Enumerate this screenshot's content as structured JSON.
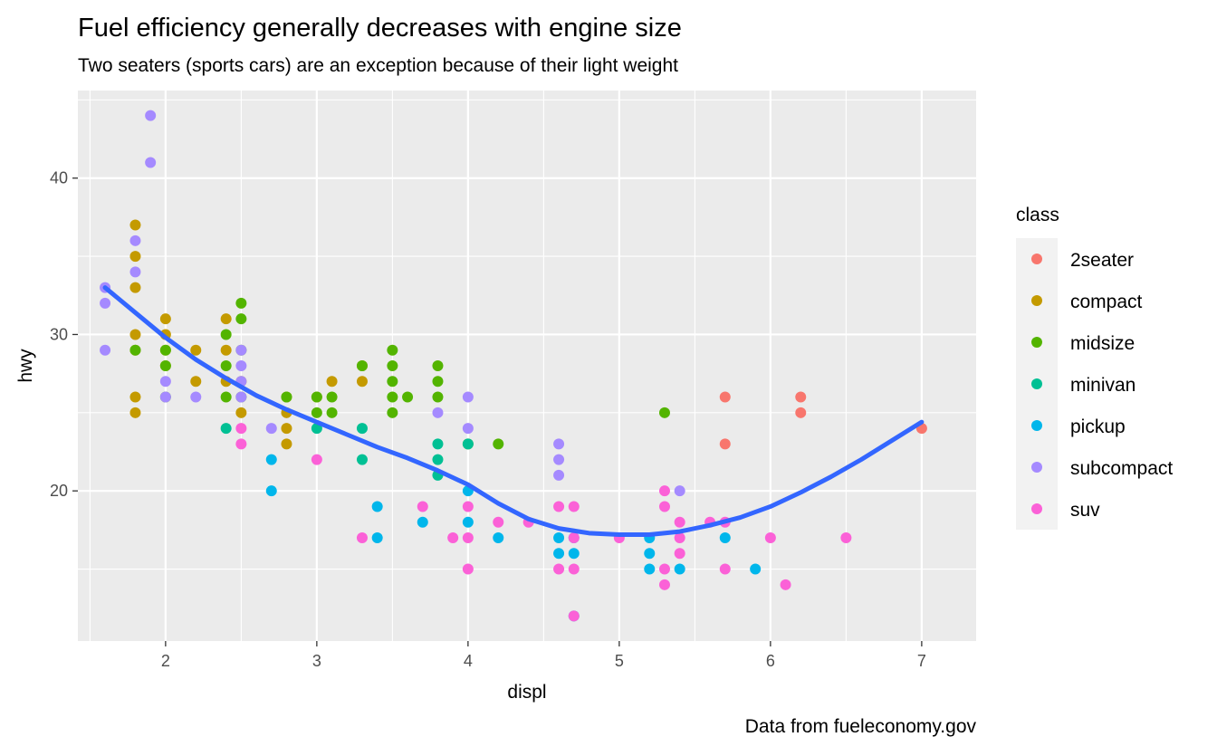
{
  "chart_data": {
    "type": "scatter",
    "title": "Fuel efficiency generally decreases with engine size",
    "subtitle": "Two seaters (sports cars) are an exception because of their light weight",
    "caption": "Data from fueleconomy.gov",
    "xlabel": "displ",
    "ylabel": "hwy",
    "xlim": [
      1.42,
      7.36
    ],
    "ylim": [
      10.4,
      45.6
    ],
    "x_ticks": [
      2,
      3,
      4,
      5,
      6,
      7
    ],
    "y_ticks": [
      20,
      30,
      40
    ],
    "x_tick_labels": [
      "2",
      "3",
      "4",
      "5",
      "6",
      "7"
    ],
    "y_tick_labels": [
      "20",
      "30",
      "40"
    ],
    "grid": true,
    "legend": {
      "title": "class",
      "placement": "right",
      "entries": [
        "2seater",
        "compact",
        "midsize",
        "minivan",
        "pickup",
        "subcompact",
        "suv"
      ]
    },
    "colors": {
      "2seater": "#F8766D",
      "compact": "#C49A00",
      "midsize": "#53B400",
      "minivan": "#00C094",
      "pickup": "#00B6EB",
      "subcompact": "#A58AFF",
      "suv": "#FB61D7",
      "smooth": "#3366FF",
      "panel": "#EBEBEB",
      "grid": "#FFFFFF"
    },
    "series": [
      {
        "name": "2seater",
        "points": [
          [
            5.7,
            26
          ],
          [
            5.7,
            23
          ],
          [
            6.2,
            26
          ],
          [
            6.2,
            25
          ],
          [
            7.0,
            24
          ]
        ]
      },
      {
        "name": "compact",
        "points": [
          [
            1.8,
            37
          ],
          [
            1.8,
            35
          ],
          [
            1.8,
            33
          ],
          [
            1.8,
            30
          ],
          [
            1.8,
            29
          ],
          [
            1.8,
            26
          ],
          [
            1.8,
            25
          ],
          [
            2.0,
            31
          ],
          [
            2.0,
            30
          ],
          [
            2.0,
            29
          ],
          [
            2.0,
            28
          ],
          [
            2.2,
            29
          ],
          [
            2.2,
            27
          ],
          [
            2.4,
            31
          ],
          [
            2.4,
            29
          ],
          [
            2.4,
            27
          ],
          [
            2.5,
            27
          ],
          [
            2.5,
            25
          ],
          [
            2.8,
            26
          ],
          [
            2.8,
            25
          ],
          [
            2.8,
            24
          ],
          [
            2.8,
            23
          ],
          [
            3.0,
            26
          ],
          [
            3.1,
            27
          ],
          [
            3.3,
            27
          ],
          [
            3.3,
            28
          ]
        ]
      },
      {
        "name": "midsize",
        "points": [
          [
            1.8,
            29
          ],
          [
            2.0,
            29
          ],
          [
            2.0,
            28
          ],
          [
            2.0,
            26
          ],
          [
            2.4,
            30
          ],
          [
            2.4,
            28
          ],
          [
            2.4,
            26
          ],
          [
            2.5,
            32
          ],
          [
            2.5,
            31
          ],
          [
            2.5,
            29
          ],
          [
            2.5,
            26
          ],
          [
            2.8,
            26
          ],
          [
            3.0,
            25
          ],
          [
            3.0,
            26
          ],
          [
            3.1,
            26
          ],
          [
            3.1,
            25
          ],
          [
            3.3,
            28
          ],
          [
            3.5,
            29
          ],
          [
            3.5,
            28
          ],
          [
            3.5,
            27
          ],
          [
            3.5,
            26
          ],
          [
            3.5,
            25
          ],
          [
            3.6,
            26
          ],
          [
            3.8,
            28
          ],
          [
            3.8,
            27
          ],
          [
            3.8,
            26
          ],
          [
            4.0,
            23
          ],
          [
            4.2,
            23
          ],
          [
            5.3,
            25
          ]
        ]
      },
      {
        "name": "minivan",
        "points": [
          [
            2.4,
            24
          ],
          [
            3.0,
            24
          ],
          [
            3.3,
            24
          ],
          [
            3.3,
            22
          ],
          [
            3.8,
            23
          ],
          [
            3.8,
            22
          ],
          [
            3.8,
            21
          ],
          [
            4.0,
            23
          ]
        ]
      },
      {
        "name": "pickup",
        "points": [
          [
            2.7,
            22
          ],
          [
            2.7,
            20
          ],
          [
            3.4,
            19
          ],
          [
            3.4,
            17
          ],
          [
            3.7,
            18
          ],
          [
            4.0,
            20
          ],
          [
            4.0,
            18
          ],
          [
            4.2,
            17
          ],
          [
            4.6,
            17
          ],
          [
            4.6,
            16
          ],
          [
            4.7,
            17
          ],
          [
            4.7,
            16
          ],
          [
            4.7,
            12
          ],
          [
            5.2,
            17
          ],
          [
            5.2,
            16
          ],
          [
            5.2,
            15
          ],
          [
            5.4,
            15
          ],
          [
            5.7,
            17
          ],
          [
            5.9,
            15
          ]
        ]
      },
      {
        "name": "subcompact",
        "points": [
          [
            1.6,
            33
          ],
          [
            1.6,
            32
          ],
          [
            1.6,
            29
          ],
          [
            1.8,
            36
          ],
          [
            1.8,
            34
          ],
          [
            1.9,
            44
          ],
          [
            1.9,
            41
          ],
          [
            2.0,
            27
          ],
          [
            2.0,
            26
          ],
          [
            2.2,
            26
          ],
          [
            2.5,
            29
          ],
          [
            2.5,
            28
          ],
          [
            2.5,
            27
          ],
          [
            2.5,
            26
          ],
          [
            2.7,
            24
          ],
          [
            3.8,
            25
          ],
          [
            4.0,
            26
          ],
          [
            4.0,
            24
          ],
          [
            4.6,
            23
          ],
          [
            4.6,
            22
          ],
          [
            4.6,
            21
          ],
          [
            5.4,
            20
          ]
        ]
      },
      {
        "name": "suv",
        "points": [
          [
            2.5,
            24
          ],
          [
            2.5,
            23
          ],
          [
            3.0,
            22
          ],
          [
            3.3,
            17
          ],
          [
            3.7,
            19
          ],
          [
            3.9,
            17
          ],
          [
            4.0,
            19
          ],
          [
            4.0,
            17
          ],
          [
            4.0,
            15
          ],
          [
            4.2,
            18
          ],
          [
            4.4,
            18
          ],
          [
            4.6,
            19
          ],
          [
            4.6,
            15
          ],
          [
            4.7,
            19
          ],
          [
            4.7,
            17
          ],
          [
            4.7,
            15
          ],
          [
            4.7,
            12
          ],
          [
            5.0,
            17
          ],
          [
            5.3,
            20
          ],
          [
            5.3,
            19
          ],
          [
            5.3,
            15
          ],
          [
            5.3,
            14
          ],
          [
            5.4,
            18
          ],
          [
            5.4,
            17
          ],
          [
            5.4,
            16
          ],
          [
            5.6,
            18
          ],
          [
            5.7,
            18
          ],
          [
            5.7,
            15
          ],
          [
            6.0,
            17
          ],
          [
            6.1,
            14
          ],
          [
            6.5,
            17
          ]
        ]
      }
    ],
    "smooth_curve": {
      "x": [
        1.6,
        1.8,
        2.0,
        2.2,
        2.4,
        2.6,
        2.8,
        3.0,
        3.2,
        3.4,
        3.6,
        3.8,
        4.0,
        4.2,
        4.4,
        4.6,
        4.8,
        5.0,
        5.2,
        5.4,
        5.6,
        5.8,
        6.0,
        6.2,
        6.4,
        6.6,
        6.8,
        7.0
      ],
      "y": [
        33.0,
        31.4,
        29.8,
        28.4,
        27.2,
        26.1,
        25.2,
        24.4,
        23.6,
        22.8,
        22.1,
        21.3,
        20.4,
        19.2,
        18.2,
        17.6,
        17.3,
        17.2,
        17.2,
        17.4,
        17.8,
        18.3,
        19.0,
        19.9,
        20.9,
        22.0,
        23.2,
        24.4
      ]
    }
  }
}
